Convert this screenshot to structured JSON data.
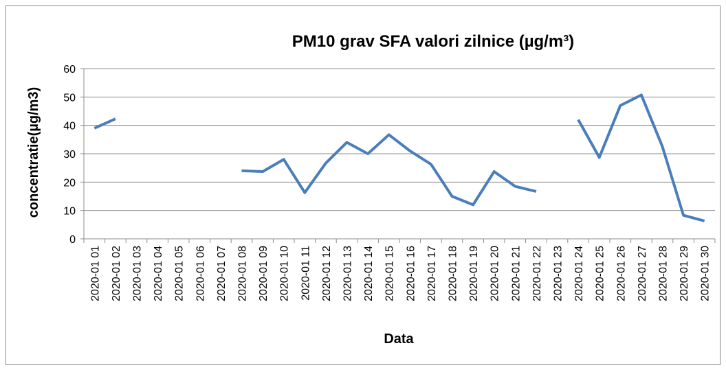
{
  "chart_data": {
    "type": "line",
    "title": "PM10 grav SFA valori zilnice  (µg/m³)",
    "x_label": "Data",
    "y_label": "concentratie(µg/m3)",
    "categories": [
      "2020-01 01",
      "2020-01 02",
      "2020-01 03",
      "2020-01 04",
      "2020-01 05",
      "2020-01 06",
      "2020-01 07",
      "2020-01 08",
      "2020-01 09",
      "2020-01 10",
      "2020-01 11",
      "2020-01 12",
      "2020-01 13",
      "2020-01 14",
      "2020-01 15",
      "2020-01 16",
      "2020-01 17",
      "2020-01 18",
      "2020-01 19",
      "2020-01 20",
      "2020-01 21",
      "2020-01 22",
      "2020-01 23",
      "2020-01 24",
      "2020-01 25",
      "2020-01 26",
      "2020-01 27",
      "2020-01 28",
      "2020-01 29",
      "2020-01 30"
    ],
    "values": [
      39,
      42.3,
      null,
      null,
      null,
      null,
      null,
      24,
      23.7,
      28,
      16.3,
      26.7,
      34,
      30,
      36.7,
      31,
      26.3,
      15,
      12,
      23.7,
      18.5,
      16.7,
      null,
      42,
      28.7,
      47,
      50.7,
      32.5,
      8.3,
      6.3
    ],
    "color": "#4a7ebb",
    "ylim": [
      0,
      60
    ],
    "yticks": [
      0,
      10,
      20,
      30,
      40,
      50,
      60
    ],
    "grid": true
  }
}
